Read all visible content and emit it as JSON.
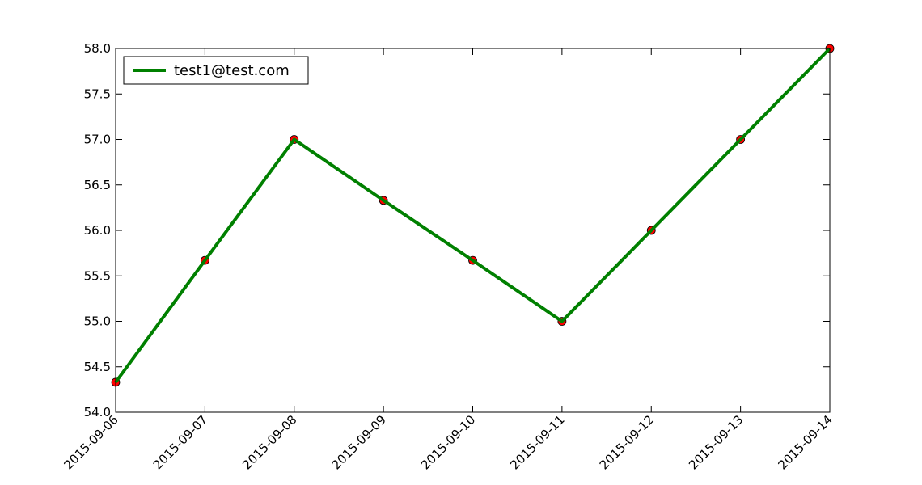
{
  "chart_data": {
    "type": "line",
    "title": "",
    "xlabel": "",
    "ylabel": "",
    "x": [
      "2015-09-06",
      "2015-09-07",
      "2015-09-08",
      "2015-09-09",
      "2015-09-10",
      "2015-09-11",
      "2015-09-12",
      "2015-09-13",
      "2015-09-14"
    ],
    "xlim": [
      "2015-09-06",
      "2015-09-14"
    ],
    "ylim": [
      54.0,
      58.0
    ],
    "y_ticks": [
      "54.0",
      "54.5",
      "55.0",
      "55.5",
      "56.0",
      "56.5",
      "57.0",
      "57.5",
      "58.0"
    ],
    "grid": false,
    "legend_position": "top-left",
    "series": [
      {
        "name": "test1@test.com",
        "line_color": "#008000",
        "marker_color": "#ff0000",
        "marker_edge_color": "#000000",
        "values": [
          54.33,
          55.67,
          57.0,
          56.33,
          55.67,
          55.0,
          56.0,
          57.0,
          58.0
        ]
      }
    ]
  }
}
